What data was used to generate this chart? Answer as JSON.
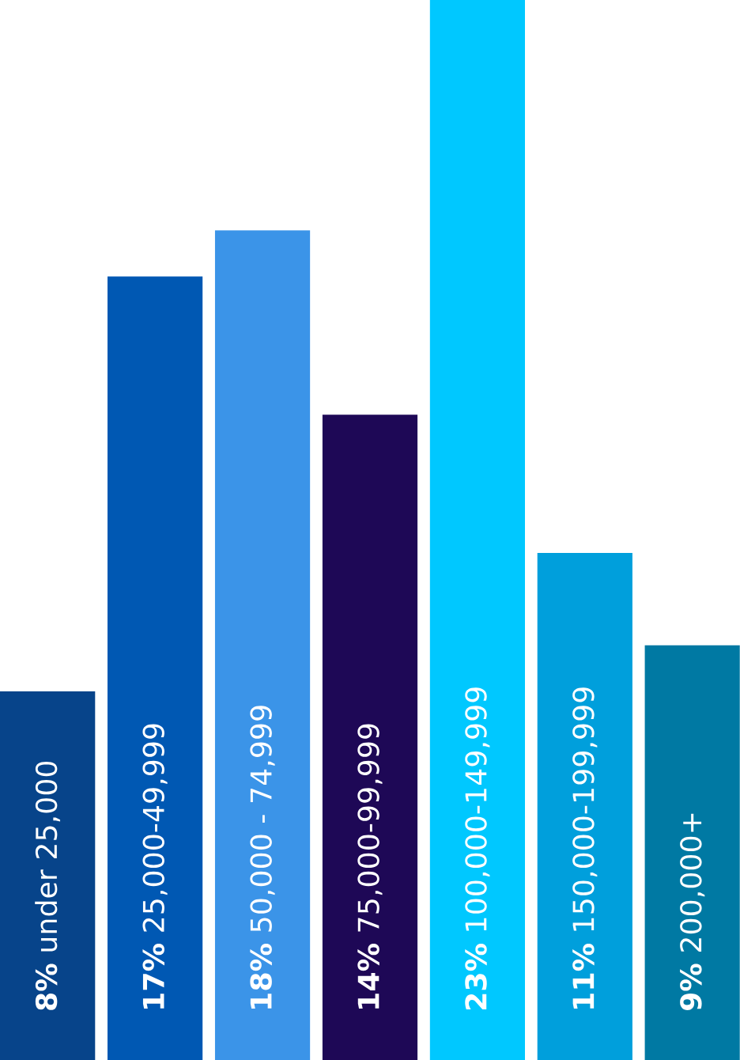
{
  "chart_data": {
    "type": "bar",
    "categories": [
      "under 25,000",
      "25,000-49,999",
      "50,000 - 74,999",
      "75,000-99,999",
      "100,000-149,999",
      "150,000-199,999",
      "200,000+"
    ],
    "values": [
      8,
      17,
      18,
      14,
      23,
      11,
      9
    ],
    "value_labels": [
      "8%",
      "17%",
      "18%",
      "14%",
      "23%",
      "11%",
      "9%"
    ],
    "colors": [
      "#07448a",
      "#0058b3",
      "#3b94e8",
      "#1e0856",
      "#00c8ff",
      "#009fdc",
      "#0079a3"
    ]
  }
}
